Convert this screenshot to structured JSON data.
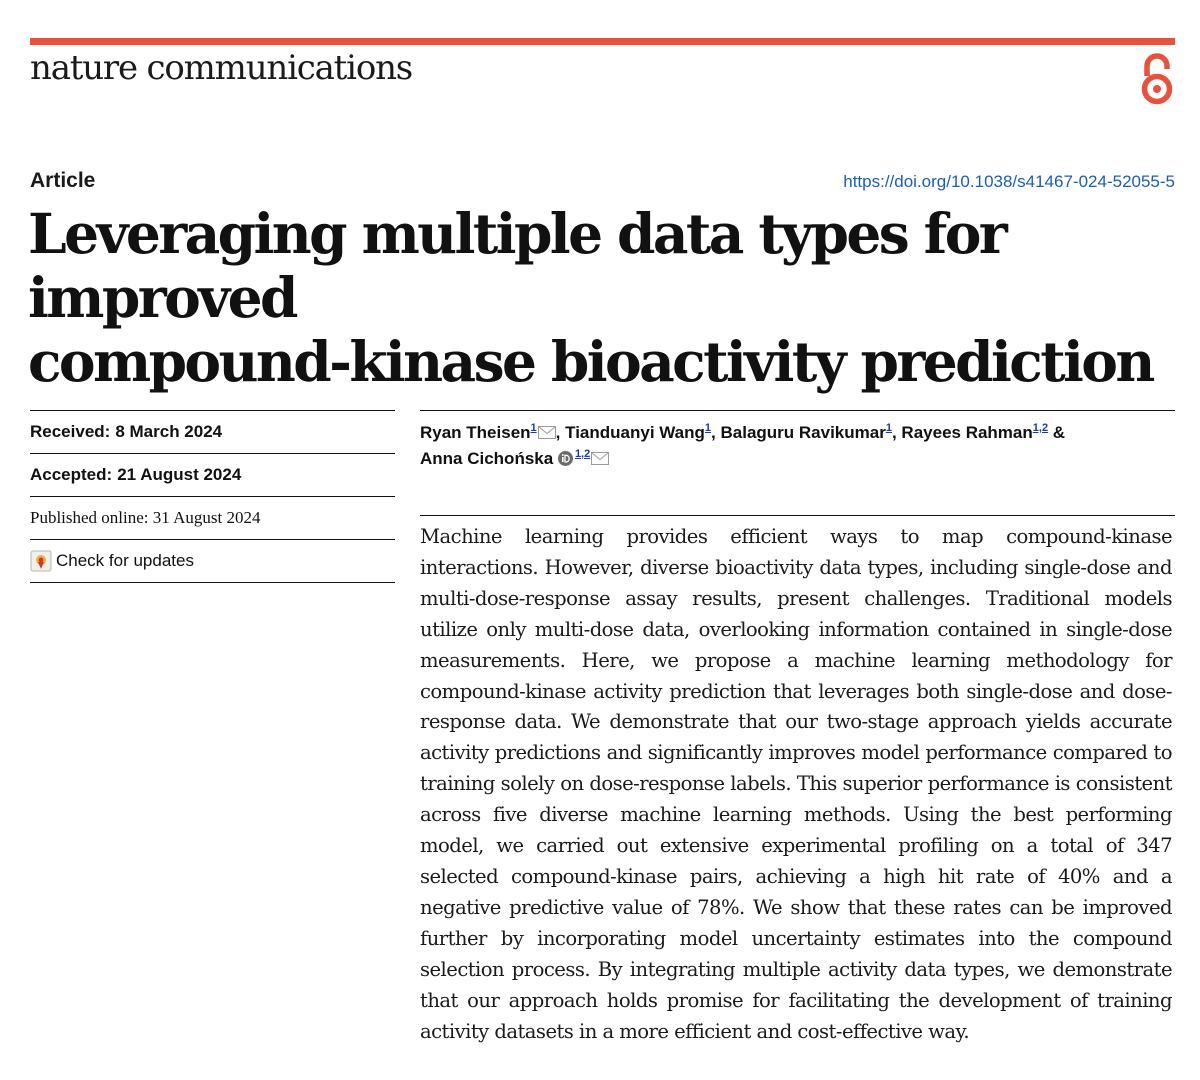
{
  "header": {
    "journal_name": "nature communications",
    "accent_color": "#e8513b",
    "open_access_icon": "open-access-icon"
  },
  "article": {
    "type": "Article",
    "doi": "https://doi.org/10.1038/s41467-024-52055-5",
    "title_line1": "Leveraging multiple data types for improved",
    "title_line2": "compound-kinase bioactivity prediction"
  },
  "dates": {
    "received_label": "Received:",
    "received_value": "8 March 2024",
    "accepted_label": "Accepted:",
    "accepted_value": "21 August 2024",
    "published_text": "Published online: 31 August 2024",
    "check_updates": "Check for updates"
  },
  "authors": [
    {
      "name": "Ryan Theisen",
      "aff": "1",
      "sep": ", "
    },
    {
      "name": "Tianduanyi Wang",
      "aff": "1",
      "sep": ", "
    },
    {
      "name": "Balaguru Ravikumar",
      "aff": "1",
      "sep": ", "
    },
    {
      "name": "Rayees Rahman",
      "aff": "1,2",
      "sep": " &"
    },
    {
      "name": "Anna Cichońska",
      "aff": "1,2",
      "sep": ""
    }
  ],
  "abstract": "Machine learning provides efficient ways to map compound-kinase interactions. However, diverse bioactivity data types, including single-dose and multi-dose-response assay results, present challenges. Traditional models utilize only multi-dose data, overlooking information contained in single-dose measurements. Here, we propose a machine learning methodology for compound-kinase activity prediction that leverages both single-dose and dose-response data. We demonstrate that our two-stage approach yields accurate activity predictions and significantly improves model performance compared to training solely on dose-response labels. This superior performance is consistent across five diverse machine learning methods. Using the best performing model, we carried out extensive experimental profiling on a total of 347 selected compound-kinase pairs, achieving a high hit rate of 40% and a negative predictive value of 78%. We show that these rates can be improved further by incorporating model uncertainty estimates into the compound selection process. By integrating multiple activity data types, we demonstrate that our approach holds promise for facilitating the development of training activity datasets in a more efficient and cost-effective way."
}
